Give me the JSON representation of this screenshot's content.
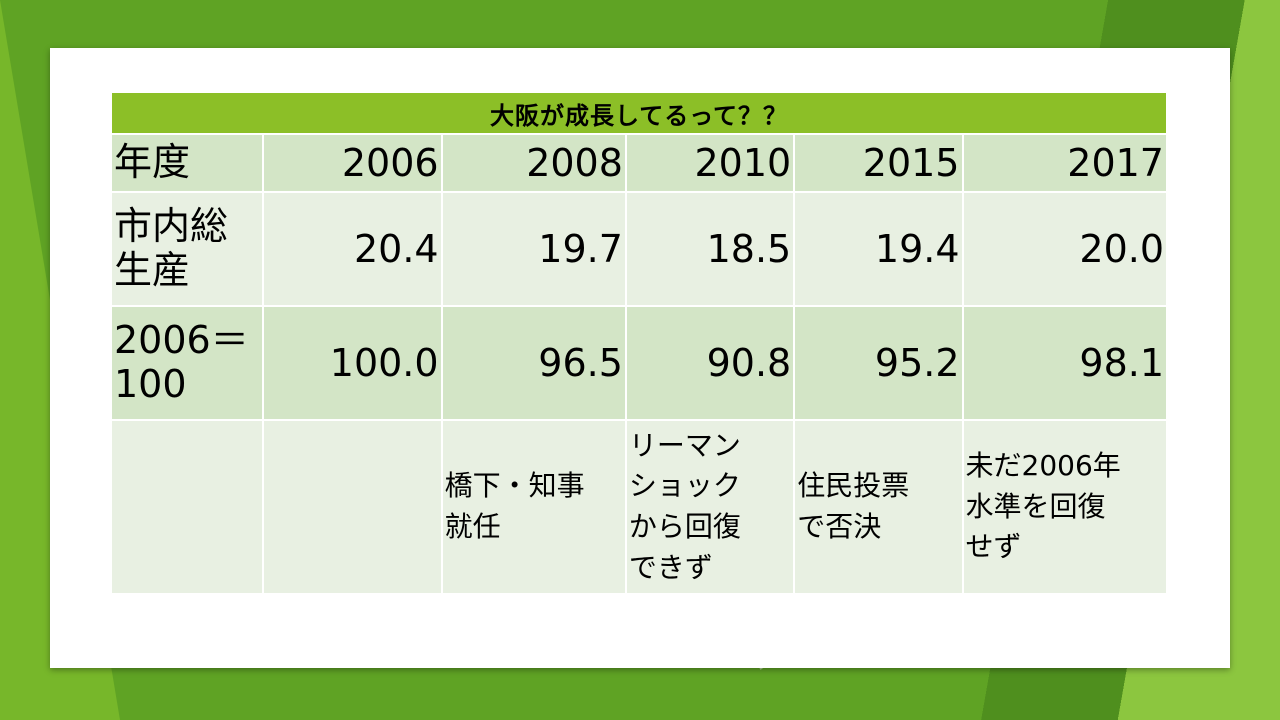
{
  "table": {
    "title": "大阪が成長してるって？？",
    "year_row": {
      "label": "年度",
      "values": [
        "2006",
        "2008",
        "2010",
        "2015",
        "2017"
      ]
    },
    "gdp_row": {
      "label": "市内総\n生産",
      "values": [
        "20.4",
        "19.7",
        "18.5",
        "19.4",
        "20.0"
      ]
    },
    "index_row": {
      "label": "2006＝\n100",
      "values": [
        "100.0",
        "96.5",
        "90.8",
        "95.2",
        "98.1"
      ]
    },
    "notes_row": {
      "values": [
        "",
        "",
        "橋下・知事\n就任",
        "リーマン\nショック\nから回復\nできず",
        "住民投票\nで否決",
        "未だ2006年\n水準を回復\nせず"
      ]
    }
  },
  "colors": {
    "header_green": "#8cbf27",
    "row_dark": "#d3e5c6",
    "row_light": "#e8f0e2",
    "background": "#5fa324"
  }
}
